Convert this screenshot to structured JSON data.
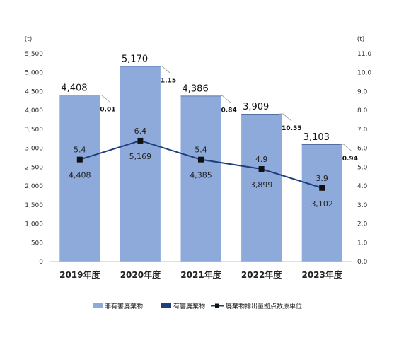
{
  "chart_data": {
    "type": "bar",
    "categories": [
      "2019年度",
      "2020年度",
      "2021年度",
      "2022年度",
      "2023年度"
    ],
    "left_unit": "(t)",
    "right_unit": "(t)",
    "left_ylim": [
      0,
      5500
    ],
    "left_ticks": [
      "0",
      "500",
      "1,000",
      "1,500",
      "2,000",
      "2,500",
      "3,000",
      "3,500",
      "4,000",
      "4,500",
      "5,000",
      "5,500"
    ],
    "right_ylim": [
      0,
      11
    ],
    "right_ticks": [
      "0.0",
      "1.0",
      "2.0",
      "3.0",
      "4.0",
      "5.0",
      "6.0",
      "7.0",
      "8.0",
      "9.0",
      "10.0",
      "11.0"
    ],
    "grid": false,
    "legend_position": "bottom",
    "series": [
      {
        "name": "非有害廃棄物",
        "kind": "bar",
        "axis": "left",
        "color": "#8eaadb",
        "values": [
          4408,
          5169,
          4385,
          3899,
          3102
        ],
        "labels": [
          "4,408",
          "5,169",
          "4,385",
          "3,899",
          "3,102"
        ]
      },
      {
        "name": "有害廃棄物",
        "kind": "bar",
        "axis": "left",
        "color": "#1f3e7c",
        "values": [
          0.01,
          1.15,
          0.84,
          10.55,
          0.94
        ],
        "labels": [
          "0.01",
          "1.15",
          "0.84",
          "10.55",
          "0.94"
        ]
      },
      {
        "name": "廃棄物排出量拠点数原単位",
        "kind": "line",
        "axis": "right",
        "color": "#1f3e7c",
        "values": [
          5.4,
          6.4,
          5.4,
          4.9,
          3.9
        ],
        "labels": [
          "5.4",
          "6.4",
          "5.4",
          "4.9",
          "3.9"
        ]
      }
    ],
    "totals": {
      "values": [
        4408,
        5170,
        4386,
        3909,
        3103
      ],
      "labels": [
        "4,408",
        "5,170",
        "4,386",
        "3,909",
        "3,103"
      ]
    }
  }
}
